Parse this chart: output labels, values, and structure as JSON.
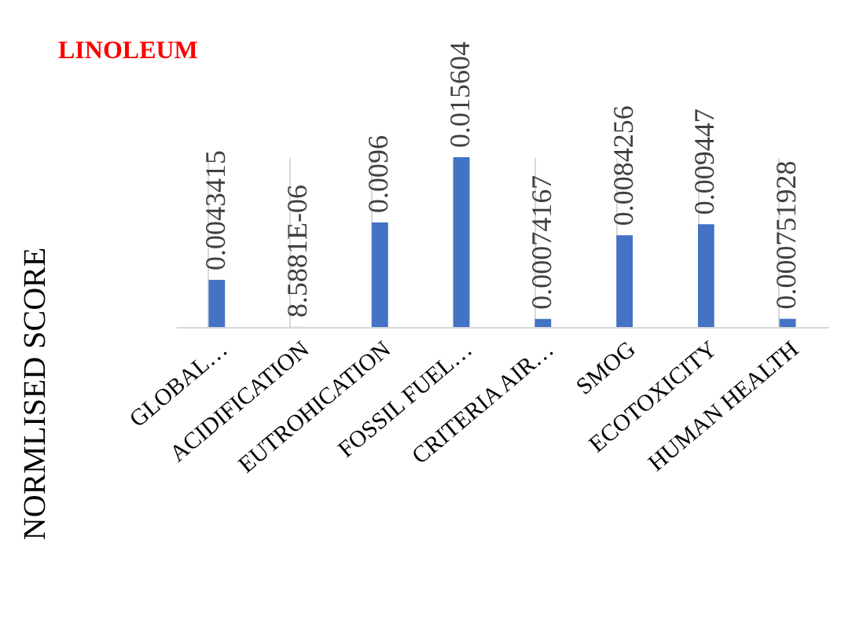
{
  "chart_data": {
    "type": "bar",
    "title": "LINOLEUM",
    "ylabel": "NORMLISED SCORE",
    "categories": [
      "GLOBAL…",
      "ACIDIFICATION",
      "EUTROHICATION",
      "FOSSIL FUEL…",
      "CRITERIA AIR…",
      "SMOG",
      "ECOTOXICITY",
      "HUMAN HEALTH"
    ],
    "values": [
      0.0043415,
      8.5881e-06,
      0.0096,
      0.015604,
      0.00074167,
      0.0084256,
      0.009447,
      0.000751928
    ],
    "value_labels": [
      "0.0043415",
      "8.5881E-06",
      "0.0096",
      "0.015604",
      "0.00074167",
      "0.0084256",
      "0.009447",
      "0.000751928"
    ],
    "color": "#4472c4",
    "grid": "x"
  }
}
